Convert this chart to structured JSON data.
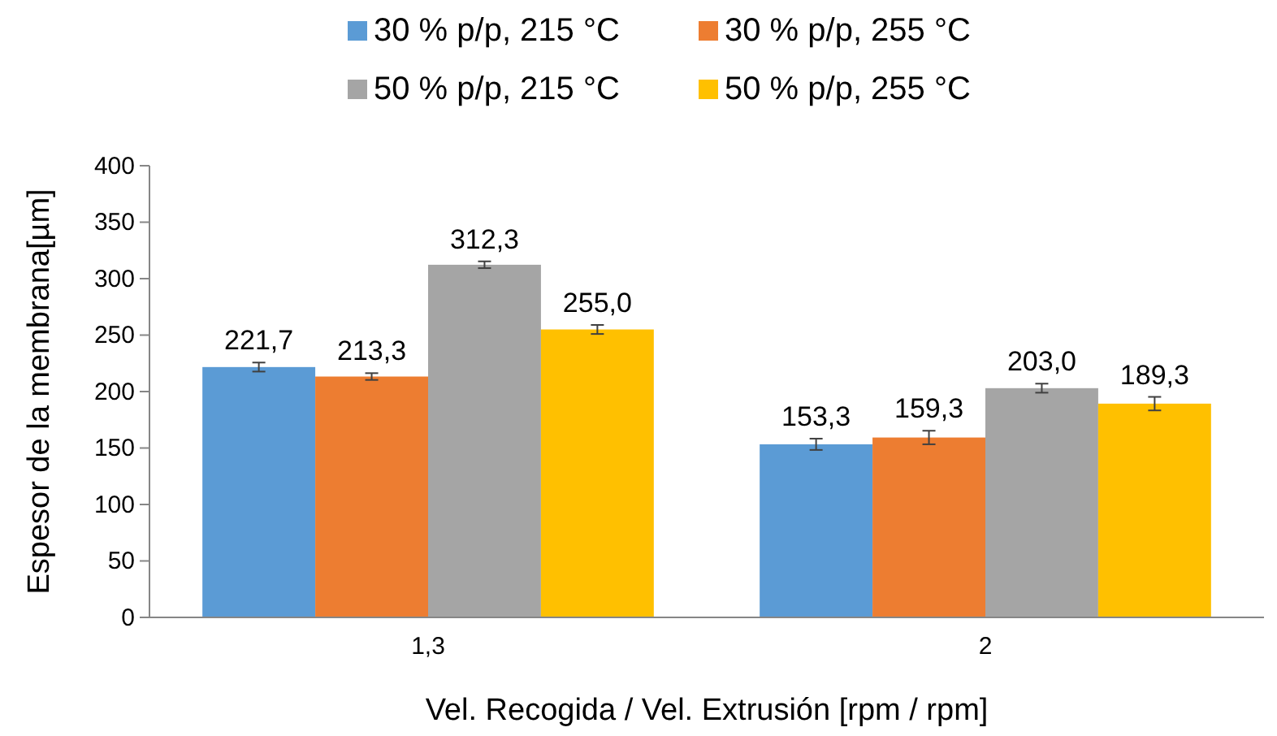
{
  "chart_data": {
    "type": "bar",
    "xlabel": "Vel. Recogida / Vel. Extrusión [rpm / rpm]",
    "ylabel": "Espesor de la membrana[µm]",
    "categories": [
      "1,3",
      "2"
    ],
    "series": [
      {
        "name": "30 % p/p, 215 °C",
        "color": "#5b9bd5",
        "values": [
          221.7,
          153.3
        ],
        "errors": [
          4,
          5
        ],
        "value_labels": [
          "221,7",
          "153,3"
        ]
      },
      {
        "name": "30 % p/p, 255 °C",
        "color": "#ed7d31",
        "values": [
          213.3,
          159.3
        ],
        "errors": [
          3,
          6
        ],
        "value_labels": [
          "213,3",
          "159,3"
        ]
      },
      {
        "name": "50 % p/p, 215 °C",
        "color": "#a5a5a5",
        "values": [
          312.3,
          203.0
        ],
        "errors": [
          3,
          4
        ],
        "value_labels": [
          "312,3",
          "203,0"
        ]
      },
      {
        "name": "50 % p/p, 255 °C",
        "color": "#ffc000",
        "values": [
          255.0,
          189.3
        ],
        "errors": [
          4,
          6
        ],
        "value_labels": [
          "255,0",
          "189,3"
        ]
      }
    ],
    "ylim": [
      0,
      400
    ],
    "yticks": [
      0,
      50,
      100,
      150,
      200,
      250,
      300,
      350,
      400
    ],
    "grid": false,
    "legend": "top"
  }
}
